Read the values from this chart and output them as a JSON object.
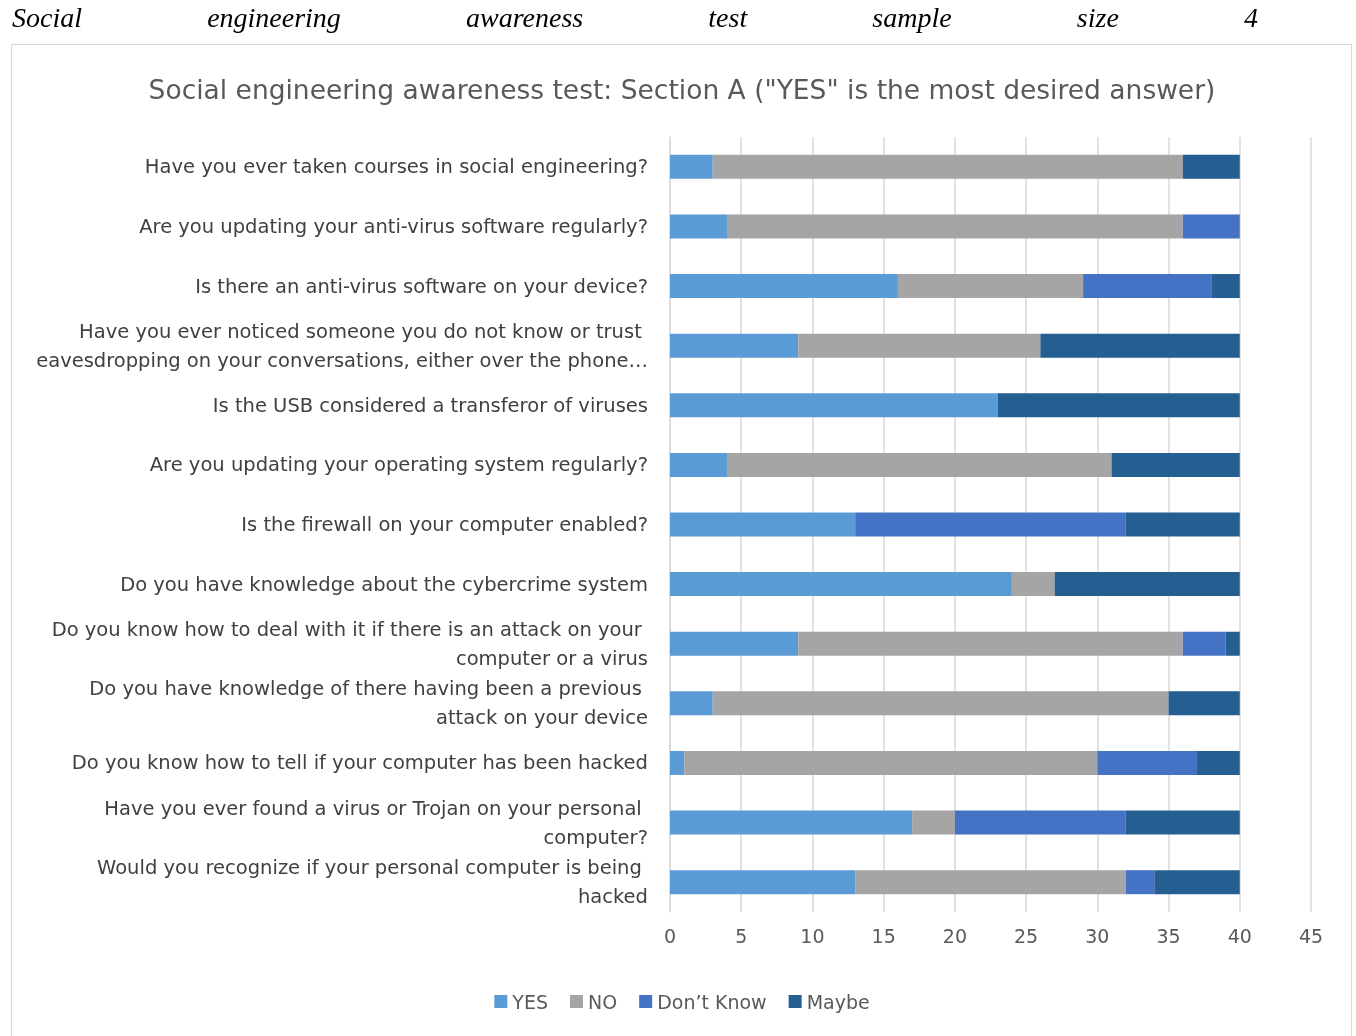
{
  "chart_data": {
    "type": "bar",
    "orientation": "horizontal",
    "stacked": true,
    "title": "Social engineering awareness test: Section A (\"YES\" is the most desired answer)",
    "annotations": [
      "Social engineering awareness test sample size 4"
    ],
    "categories": [
      "Have you ever taken courses in social engineering?",
      "Are you updating your anti-virus software regularly?",
      "Is there an anti-virus software on your device?",
      "Have you ever noticed someone you do not know or trust eavesdropping on your conversations, either over the phone…",
      "Is the USB considered a transferor of viruses",
      "Are you updating your operating system regularly?",
      "Is the firewall on your computer enabled?",
      "Do you have knowledge about the cybercrime system",
      "Do you know how to deal with it if there is an attack on your computer or a virus",
      "Do you have knowledge of there having been a previous attack on your device",
      "Do you know how to tell if your computer has been hacked",
      "Have you ever found a virus or Trojan on your personal computer?",
      "Would you recognize if your personal computer is being hacked"
    ],
    "series": [
      {
        "name": "YES",
        "color": "#5b9bd5",
        "values": [
          3,
          4,
          16,
          9,
          23,
          4,
          13,
          24,
          9,
          3,
          1,
          17,
          13
        ]
      },
      {
        "name": "NO",
        "color": "#a5a5a5",
        "values": [
          33,
          32,
          13,
          17,
          0,
          27,
          0,
          3,
          27,
          32,
          29,
          3,
          19
        ]
      },
      {
        "name": "Don’t Know",
        "color": "#4472c4",
        "values": [
          0,
          4,
          9,
          0,
          0,
          0,
          19,
          0,
          3,
          0,
          7,
          12,
          2
        ]
      },
      {
        "name": "Maybe",
        "color": "#255e91",
        "values": [
          4,
          0,
          2,
          14,
          17,
          9,
          8,
          13,
          1,
          5,
          3,
          8,
          6
        ]
      }
    ],
    "xlim": [
      0,
      45
    ],
    "xticks": [
      0,
      5,
      10,
      15,
      20,
      25,
      30,
      35,
      40,
      45
    ],
    "grid": "x",
    "legend": "bottom"
  }
}
